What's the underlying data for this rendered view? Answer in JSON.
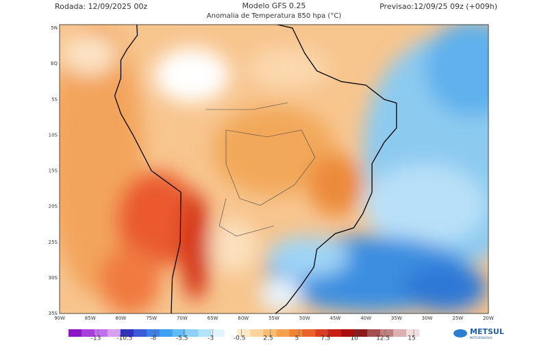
{
  "header": {
    "run": "Rodada: 12/09/2025 00z",
    "title": "Modelo GFS 0.25",
    "subtitle": "Anomalia de Temperatura 850 hpa (°C)",
    "forecast": "Previsao:12/09/25 09z (+009h)"
  },
  "latitudes": [
    "5N",
    "EQ",
    "5S",
    "10S",
    "15S",
    "20S",
    "25S",
    "30S",
    "35S"
  ],
  "longitudes": [
    "90W",
    "85W",
    "80W",
    "75W",
    "70W",
    "65W",
    "60W",
    "55W",
    "50W",
    "45W",
    "40W",
    "35W",
    "30W",
    "25W",
    "20W"
  ],
  "colorbar": {
    "labels": [
      "-13",
      "-10.5",
      "-8",
      "-5.5",
      "-3",
      "-0.5",
      "2.5",
      "5",
      "7.5",
      "10",
      "12.5",
      "15"
    ],
    "colors": [
      "#8a16c4",
      "#a640d8",
      "#c070e8",
      "#d8a0f0",
      "#3030c0",
      "#3a5ad8",
      "#3a80e8",
      "#40a0f0",
      "#60bcf5",
      "#8cd2f8",
      "#b4e4fb",
      "#e0f4fd",
      "#ffffff",
      "#fde9c4",
      "#fbd39b",
      "#f8bc72",
      "#f5a24f",
      "#f08432",
      "#e8632a",
      "#dc3e20",
      "#c81e14",
      "#a81010",
      "#8c1a1a",
      "#a45050",
      "#c08080",
      "#dcb0b0",
      "#f0dede"
    ]
  },
  "logo": {
    "name": "METSUL",
    "tagline": "METEOROLOGIA"
  }
}
